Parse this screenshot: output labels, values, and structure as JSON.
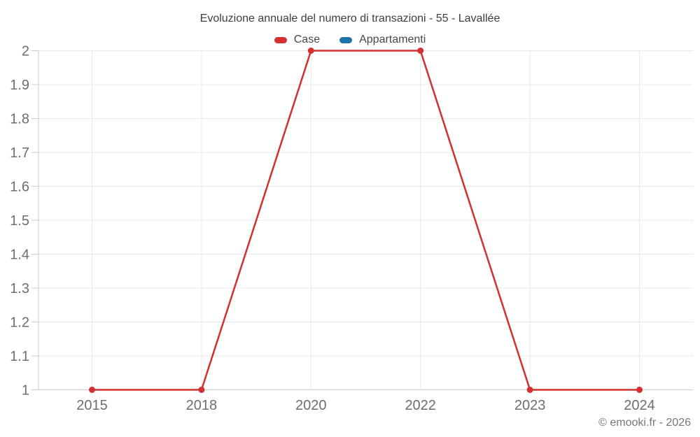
{
  "header": {
    "title": "Evoluzione annuale del numero di transazioni - 55 - Lavallée"
  },
  "chart_data": {
    "type": "line",
    "title": "Evoluzione annuale del numero di transazioni - 55 - Lavallée",
    "categories": [
      "2015",
      "2018",
      "2020",
      "2022",
      "2023",
      "2024"
    ],
    "series": [
      {
        "name": "Case",
        "color": "#d3302f",
        "values": [
          1,
          1,
          2,
          2,
          1,
          1
        ]
      },
      {
        "name": "Appartamenti",
        "color": "#1e73a8",
        "values": []
      }
    ],
    "xlabel": "",
    "ylabel": "",
    "ylim": [
      1,
      2
    ],
    "ytick_labels": [
      "2",
      "1.9",
      "1.8",
      "1.7",
      "1.6",
      "1.5",
      "1.4",
      "1.3",
      "1.2",
      "1.1",
      "1"
    ],
    "grid": true,
    "legend_position": "top"
  },
  "footer": {
    "copyright": "© emooki.fr - 2026"
  },
  "colors": {
    "series_case": "#d3302f",
    "series_appartamenti": "#1e73a8",
    "grid_line": "#e9e9e9",
    "axis_line": "#cccccc",
    "title_text": "#3d3d3d",
    "legend_text": "#474747",
    "tick_text": "#6e6e6e",
    "copyright_text": "#767676"
  }
}
